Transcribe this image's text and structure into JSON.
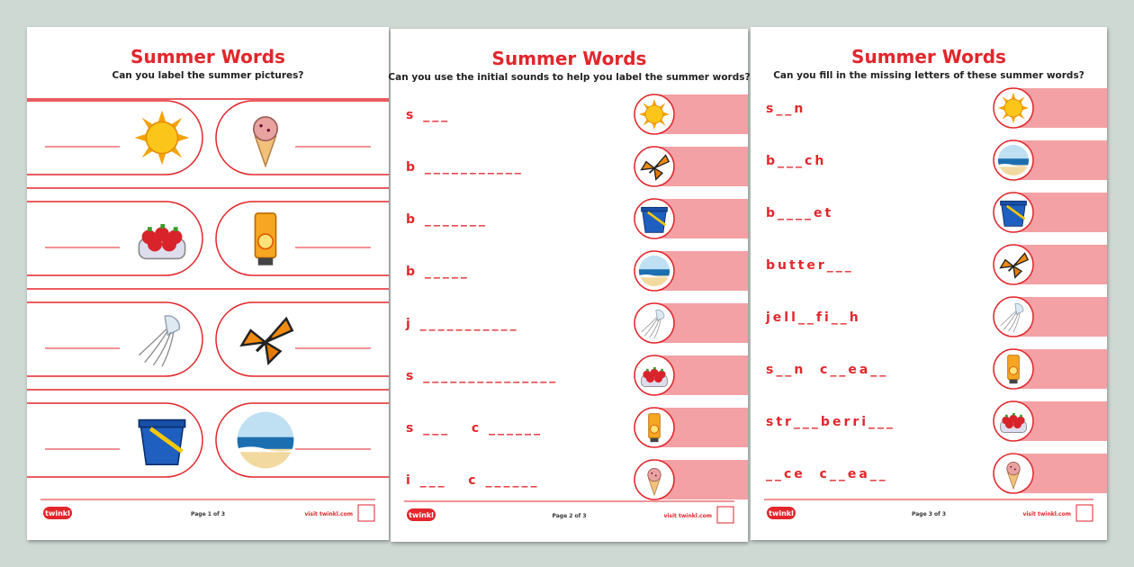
{
  "pages": [
    {
      "title": "Summer Words",
      "subtitle": "Can you label the summer pictures?",
      "footer": {
        "logo": "twinkl",
        "page": "Page 1 of 3",
        "site": "visit twinkl.com"
      }
    },
    {
      "title": "Summer Words",
      "subtitle": "Can you use the initial sounds to help you label the summer words?",
      "rows": [
        "s ___",
        "b ___________",
        "b _______",
        "b _____",
        "j ___________",
        "s _______________",
        "s ___   c ______",
        "i ___   c ______"
      ],
      "footer": {
        "logo": "twinkl",
        "page": "Page 2 of 3",
        "site": "visit twinkl.com"
      }
    },
    {
      "title": "Summer Words",
      "subtitle": "Can you fill in the missing letters of these summer words?",
      "rows": [
        "s__n",
        "b___ch",
        "b____et",
        "butter___",
        "jell__fi__h",
        "s__n  c__ea__",
        "str___berri___",
        "__ce  c__ea__"
      ],
      "footer": {
        "logo": "twinkl",
        "page": "Page 3 of 3",
        "site": "visit twinkl.com"
      }
    }
  ]
}
